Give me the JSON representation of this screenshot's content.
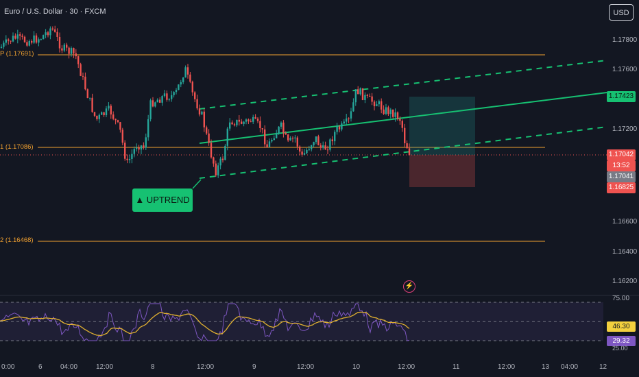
{
  "header": {
    "symbol_title": "Euro / U.S. Dollar · 30 · FXCM",
    "currency_button": "USD"
  },
  "price_axis": {
    "labels": [
      "1.17800",
      "1.17600",
      "1.17200",
      "1.16600",
      "1.16400",
      "1.16200"
    ]
  },
  "tags": {
    "channel_upper": "1.17423",
    "current_price": "1.17042",
    "countdown": "13:52",
    "bid_price": "1.17041",
    "stop_price": "1.16825"
  },
  "levels": {
    "r_label": "P (1.17691)",
    "mid_label": "1 (1.17086)",
    "s_label": "2 (1.16468)"
  },
  "annotations": {
    "uptrend": "▲ UPTREND"
  },
  "rsi": {
    "upper_band": "75.00",
    "value_label": "46.30",
    "lower_value": "29.32",
    "lower_band": "25.00"
  },
  "time_axis": {
    "labels": [
      "0:00",
      "6",
      "04:00",
      "12:00",
      "8",
      "12:00",
      "9",
      "12:00",
      "10",
      "12:00",
      "11",
      "12:00",
      "13",
      "04:00",
      "12"
    ]
  },
  "colors": {
    "background": "#131722",
    "bull_candle": "#26a69a",
    "bear_candle": "#ef5350",
    "channel": "#16c172",
    "pivot_level": "#f0a030",
    "rsi_line": "#7e57c2",
    "rsi_ma": "#e0b030"
  }
}
